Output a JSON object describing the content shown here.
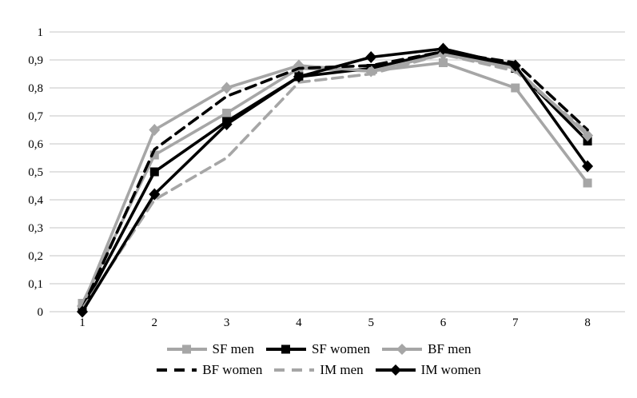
{
  "chart_data": {
    "type": "line",
    "title": "",
    "xlabel": "",
    "ylabel": "",
    "x": [
      1,
      2,
      3,
      4,
      5,
      6,
      7,
      8
    ],
    "x_tick_labels": [
      "1",
      "2",
      "3",
      "4",
      "5",
      "6",
      "7",
      "8"
    ],
    "ylim": [
      0,
      1
    ],
    "y_ticks": [
      0,
      0.1,
      0.2,
      0.3,
      0.4,
      0.5,
      0.6,
      0.7,
      0.8,
      0.9,
      1
    ],
    "y_tick_labels": [
      "0",
      "0,1",
      "0,2",
      "0,3",
      "0,4",
      "0,5",
      "0,6",
      "0,7",
      "0,8",
      "0,9",
      "1"
    ],
    "grid": "horizontal-only",
    "legend_position": "bottom",
    "colors": {
      "gray": "#a6a6a6",
      "black": "#000000",
      "gridline": "#d9d9d9",
      "tick_text": "#000000"
    },
    "series": [
      {
        "name": "SF men",
        "color": "gray",
        "style": "solid",
        "marker": "square",
        "values": [
          0.03,
          0.56,
          0.71,
          0.87,
          0.86,
          0.89,
          0.8,
          0.46
        ]
      },
      {
        "name": "SF women",
        "color": "black",
        "style": "solid",
        "marker": "square",
        "values": [
          0.01,
          0.5,
          0.68,
          0.84,
          0.87,
          0.93,
          0.87,
          0.61
        ]
      },
      {
        "name": "BF men",
        "color": "gray",
        "style": "solid",
        "marker": "diamond",
        "values": [
          0.02,
          0.65,
          0.8,
          0.88,
          0.86,
          0.92,
          0.87,
          0.63
        ]
      },
      {
        "name": "BF women",
        "color": "black",
        "style": "dashed",
        "marker": "none",
        "values": [
          0.01,
          0.58,
          0.77,
          0.87,
          0.88,
          0.93,
          0.89,
          0.65
        ]
      },
      {
        "name": "IM men",
        "color": "gray",
        "style": "dashed",
        "marker": "none",
        "values": [
          0.01,
          0.4,
          0.55,
          0.82,
          0.85,
          0.92,
          0.86,
          0.64
        ]
      },
      {
        "name": "IM women",
        "color": "black",
        "style": "solid",
        "marker": "diamond",
        "values": [
          0.0,
          0.42,
          0.67,
          0.84,
          0.91,
          0.94,
          0.88,
          0.52
        ]
      }
    ],
    "legend": {
      "rows": [
        [
          "SF men",
          "SF women",
          "BF men"
        ],
        [
          "BF women",
          "IM men",
          "IM women"
        ]
      ]
    }
  }
}
